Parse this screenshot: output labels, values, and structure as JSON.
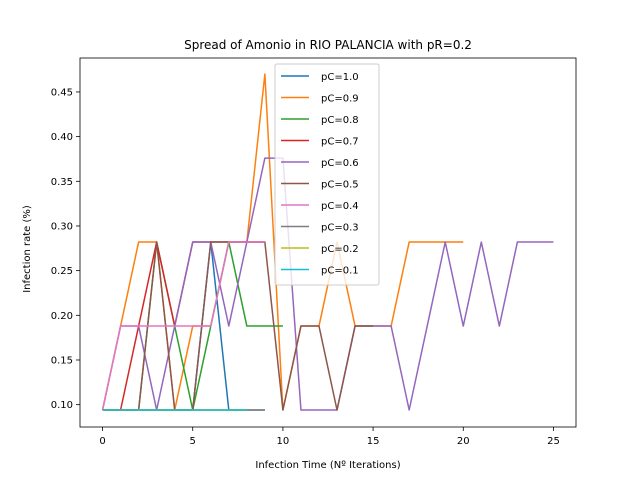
{
  "chart_data": {
    "type": "line",
    "title": "Spread of Amonio in RIO PALANCIA with pR=0.2",
    "xlabel": "Infection Time (Nº Iterations)",
    "ylabel": "Infection rate (%)",
    "xlim": [
      -1.25,
      26.25
    ],
    "ylim": [
      0.075,
      0.488
    ],
    "xticks": [
      0,
      5,
      10,
      15,
      20,
      25
    ],
    "yticks": [
      0.1,
      0.15,
      0.2,
      0.25,
      0.3,
      0.35,
      0.4,
      0.45
    ],
    "ytick_labels": [
      "0.10",
      "0.15",
      "0.20",
      "0.25",
      "0.30",
      "0.35",
      "0.40",
      "0.45"
    ],
    "legend_position": "upper center",
    "series": [
      {
        "name": "pC=1.0",
        "color": "#1f77b4",
        "x": [
          0,
          1,
          2,
          3,
          4,
          5,
          6,
          7,
          8,
          9
        ],
        "y": [
          0.094,
          0.094,
          0.094,
          0.094,
          0.094,
          0.094,
          0.282,
          0.094,
          0.094,
          0.094
        ]
      },
      {
        "name": "pC=0.9",
        "color": "#ff7f0e",
        "x": [
          0,
          1,
          2,
          3,
          4,
          5,
          6,
          7,
          8,
          9,
          10,
          11,
          12,
          13,
          14,
          15,
          16,
          17,
          18,
          19,
          20
        ],
        "y": [
          0.094,
          0.188,
          0.282,
          0.282,
          0.094,
          0.188,
          0.188,
          0.282,
          0.282,
          0.47,
          0.094,
          0.188,
          0.188,
          0.282,
          0.188,
          0.188,
          0.188,
          0.282,
          0.282,
          0.282,
          0.282
        ]
      },
      {
        "name": "pC=0.8",
        "color": "#2ca02c",
        "x": [
          0,
          1,
          2,
          3,
          4,
          5,
          6,
          7,
          8,
          9,
          10
        ],
        "y": [
          0.094,
          0.094,
          0.094,
          0.282,
          0.188,
          0.094,
          0.188,
          0.282,
          0.188,
          0.188,
          0.188
        ]
      },
      {
        "name": "pC=0.7",
        "color": "#d62728",
        "x": [
          0,
          1,
          2,
          3,
          4,
          5,
          6,
          7,
          8,
          9
        ],
        "y": [
          0.094,
          0.094,
          0.188,
          0.282,
          0.188,
          0.282,
          0.282,
          0.282,
          0.282,
          0.282
        ]
      },
      {
        "name": "pC=0.6",
        "color": "#9467bd",
        "x": [
          0,
          1,
          2,
          3,
          4,
          5,
          6,
          7,
          8,
          9,
          10,
          11,
          12,
          13,
          14,
          15,
          16,
          17,
          18,
          19,
          20,
          21,
          22,
          23,
          24,
          25
        ],
        "y": [
          0.094,
          0.188,
          0.188,
          0.094,
          0.188,
          0.282,
          0.282,
          0.188,
          0.282,
          0.376,
          0.376,
          0.094,
          0.094,
          0.094,
          0.188,
          0.188,
          0.188,
          0.094,
          0.188,
          0.282,
          0.188,
          0.282,
          0.188,
          0.282,
          0.282,
          0.282
        ]
      },
      {
        "name": "pC=0.5",
        "color": "#8c564b",
        "x": [
          0,
          1,
          2,
          3,
          4,
          5,
          6,
          7,
          8,
          9,
          10,
          11,
          12,
          13,
          14,
          15
        ],
        "y": [
          0.094,
          0.094,
          0.094,
          0.282,
          0.094,
          0.094,
          0.282,
          0.282,
          0.282,
          0.282,
          0.094,
          0.188,
          0.188,
          0.094,
          0.188,
          0.188
        ]
      },
      {
        "name": "pC=0.4",
        "color": "#e377c2",
        "x": [
          0,
          1,
          2,
          3,
          4,
          5,
          6,
          7,
          8,
          9
        ],
        "y": [
          0.094,
          0.188,
          0.188,
          0.188,
          0.188,
          0.188,
          0.188,
          0.282,
          0.282,
          0.282
        ]
      },
      {
        "name": "pC=0.3",
        "color": "#7f7f7f",
        "x": [
          0,
          1,
          2,
          3,
          4,
          5,
          6,
          7,
          8,
          9
        ],
        "y": [
          0.094,
          0.094,
          0.094,
          0.094,
          0.094,
          0.094,
          0.094,
          0.094,
          0.094,
          0.094
        ]
      },
      {
        "name": "pC=0.2",
        "color": "#bcbd22",
        "x": [
          0,
          1,
          2,
          3,
          4,
          5,
          6,
          7,
          8
        ],
        "y": [
          0.094,
          0.094,
          0.094,
          0.094,
          0.094,
          0.094,
          0.094,
          0.094,
          0.094
        ]
      },
      {
        "name": "pC=0.1",
        "color": "#17becf",
        "x": [
          0,
          1,
          2,
          3,
          4,
          5,
          6,
          7,
          8
        ],
        "y": [
          0.094,
          0.094,
          0.094,
          0.094,
          0.094,
          0.094,
          0.094,
          0.094,
          0.094
        ]
      }
    ]
  }
}
